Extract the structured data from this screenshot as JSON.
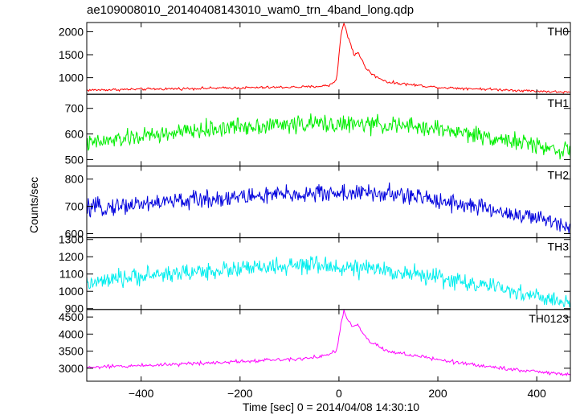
{
  "title": "ae109008010_20140408143010_wam0_trn_4band_long.qdp",
  "xlabel": "Time [sec] 0 = 2014/04/08 14:30:10",
  "ylabel": "Counts/sec",
  "chart_data": {
    "type": "line",
    "title": "ae109008010_20140408143010_wam0_trn_4band_long.qdp",
    "xlabel": "Time [sec] 0 = 2014/04/08 14:30:10",
    "ylabel": "Counts/sec",
    "xlim": [
      -510,
      468
    ],
    "x_ticks": [
      -400,
      -200,
      0,
      200,
      400
    ],
    "panels": [
      {
        "name": "TH0",
        "color": "#ff0000",
        "ylim": [
          640,
          2200
        ],
        "y_ticks": [
          1000,
          1500,
          2000
        ],
        "noise": 25,
        "step": 2,
        "keypoints": [
          [
            -510,
            730
          ],
          [
            -400,
            750
          ],
          [
            -200,
            780
          ],
          [
            -60,
            800
          ],
          [
            -20,
            830
          ],
          [
            -5,
            950
          ],
          [
            0,
            1500
          ],
          [
            5,
            2000
          ],
          [
            10,
            2180
          ],
          [
            18,
            1900
          ],
          [
            25,
            1700
          ],
          [
            30,
            1500
          ],
          [
            40,
            1550
          ],
          [
            45,
            1400
          ],
          [
            55,
            1200
          ],
          [
            70,
            1050
          ],
          [
            100,
            900
          ],
          [
            200,
            790
          ],
          [
            300,
            750
          ],
          [
            400,
            710
          ],
          [
            468,
            680
          ]
        ]
      },
      {
        "name": "TH1",
        "color": "#00ee00",
        "ylim": [
          475,
          755
        ],
        "y_ticks": [
          500,
          600,
          700
        ],
        "noise": 30,
        "step": 1.5,
        "keypoints": [
          [
            -510,
            560
          ],
          [
            -400,
            590
          ],
          [
            -200,
            630
          ],
          [
            -50,
            640
          ],
          [
            100,
            635
          ],
          [
            200,
            620
          ],
          [
            300,
            590
          ],
          [
            400,
            555
          ],
          [
            468,
            530
          ]
        ]
      },
      {
        "name": "TH2",
        "color": "#0000dd",
        "ylim": [
          585,
          848
        ],
        "y_ticks": [
          600,
          700,
          800
        ],
        "noise": 30,
        "step": 1.5,
        "keypoints": [
          [
            -510,
            690
          ],
          [
            -400,
            710
          ],
          [
            -200,
            735
          ],
          [
            0,
            750
          ],
          [
            100,
            745
          ],
          [
            200,
            725
          ],
          [
            300,
            690
          ],
          [
            400,
            655
          ],
          [
            468,
            630
          ]
        ]
      },
      {
        "name": "TH3",
        "color": "#00eeee",
        "ylim": [
          895,
          1310
        ],
        "y_ticks": [
          900,
          1000,
          1100,
          1200,
          1300
        ],
        "noise": 45,
        "step": 1.5,
        "keypoints": [
          [
            -510,
            1040
          ],
          [
            -400,
            1090
          ],
          [
            -200,
            1130
          ],
          [
            -50,
            1150
          ],
          [
            100,
            1120
          ],
          [
            200,
            1080
          ],
          [
            300,
            1030
          ],
          [
            400,
            970
          ],
          [
            468,
            930
          ]
        ]
      },
      {
        "name": "TH0123",
        "color": "#ff00ff",
        "ylim": [
          2620,
          4720
        ],
        "y_ticks": [
          3000,
          3500,
          4000,
          4500
        ],
        "noise": 50,
        "step": 2,
        "keypoints": [
          [
            -510,
            3020
          ],
          [
            -400,
            3080
          ],
          [
            -200,
            3200
          ],
          [
            -60,
            3300
          ],
          [
            -20,
            3400
          ],
          [
            -5,
            3500
          ],
          [
            0,
            3900
          ],
          [
            5,
            4400
          ],
          [
            10,
            4650
          ],
          [
            18,
            4400
          ],
          [
            25,
            4300
          ],
          [
            30,
            4200
          ],
          [
            40,
            4250
          ],
          [
            45,
            4100
          ],
          [
            55,
            3900
          ],
          [
            70,
            3700
          ],
          [
            100,
            3500
          ],
          [
            200,
            3250
          ],
          [
            300,
            3050
          ],
          [
            400,
            2900
          ],
          [
            468,
            2800
          ]
        ]
      }
    ]
  }
}
